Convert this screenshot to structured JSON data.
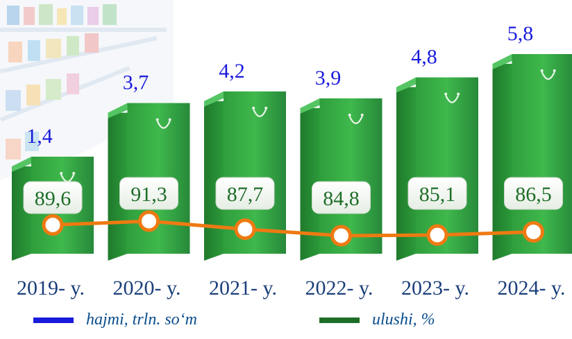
{
  "chart_data": {
    "type": "bar",
    "categories": [
      "2019- y.",
      "2020- y.",
      "2021- y.",
      "2022- y.",
      "2023- y.",
      "2024- y."
    ],
    "series": [
      {
        "name": "hajmi, trln. so‘m",
        "values": [
          1.4,
          3.7,
          4.2,
          3.9,
          4.8,
          5.8
        ],
        "labels": [
          "1,4",
          "3,7",
          "4,2",
          "3,9",
          "4,8",
          "5,8"
        ],
        "color": "#1a1adc"
      },
      {
        "name": "ulushi, %",
        "values": [
          89.6,
          91.3,
          87.7,
          84.8,
          85.1,
          86.5
        ],
        "labels": [
          "89,6",
          "91,3",
          "87,7",
          "84,8",
          "85,1",
          "86,5"
        ],
        "color": "#1e6e28",
        "line_color": "#ee7a12"
      }
    ],
    "title": "",
    "xlabel": "",
    "ylabel": "",
    "grid": false,
    "legend": "bottom"
  }
}
